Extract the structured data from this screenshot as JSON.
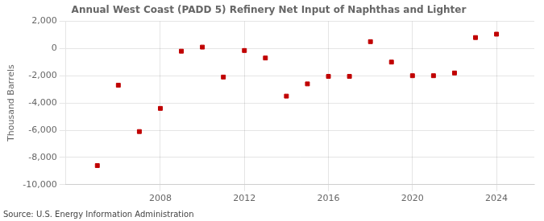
{
  "chart_data": {
    "type": "scatter",
    "title": "Annual West Coast (PADD 5) Refinery Net Input of Naphthas and Lighter",
    "ylabel": "Thousand Barrels",
    "source": "Source: U.S. Energy Information Administration",
    "x": [
      2005,
      2006,
      2007,
      2008,
      2009,
      2010,
      2011,
      2012,
      2013,
      2014,
      2015,
      2016,
      2017,
      2018,
      2019,
      2020,
      2021,
      2022,
      2023,
      2024
    ],
    "values": [
      -8600,
      -2700,
      -6100,
      -4400,
      -200,
      100,
      -2100,
      -150,
      -700,
      -3500,
      -2600,
      -2050,
      -2050,
      500,
      -1000,
      -2000,
      -2000,
      -1800,
      800,
      1050
    ],
    "color": "#c00000",
    "marker": "square",
    "xlim": [
      2003.5,
      2025.8
    ],
    "xticks": [
      2008,
      2012,
      2016,
      2020,
      2024
    ],
    "ylim": [
      -10000,
      2000
    ],
    "yticks": [
      {
        "value": -10000,
        "label": "-10,000"
      },
      {
        "value": -8000,
        "label": "-8,000"
      },
      {
        "value": -6000,
        "label": "-6,000"
      },
      {
        "value": -4000,
        "label": "-4,000"
      },
      {
        "value": -2000,
        "label": "-2,000"
      },
      0,
      {
        "value": 2000,
        "label": "2,000"
      }
    ],
    "grid": true
  }
}
